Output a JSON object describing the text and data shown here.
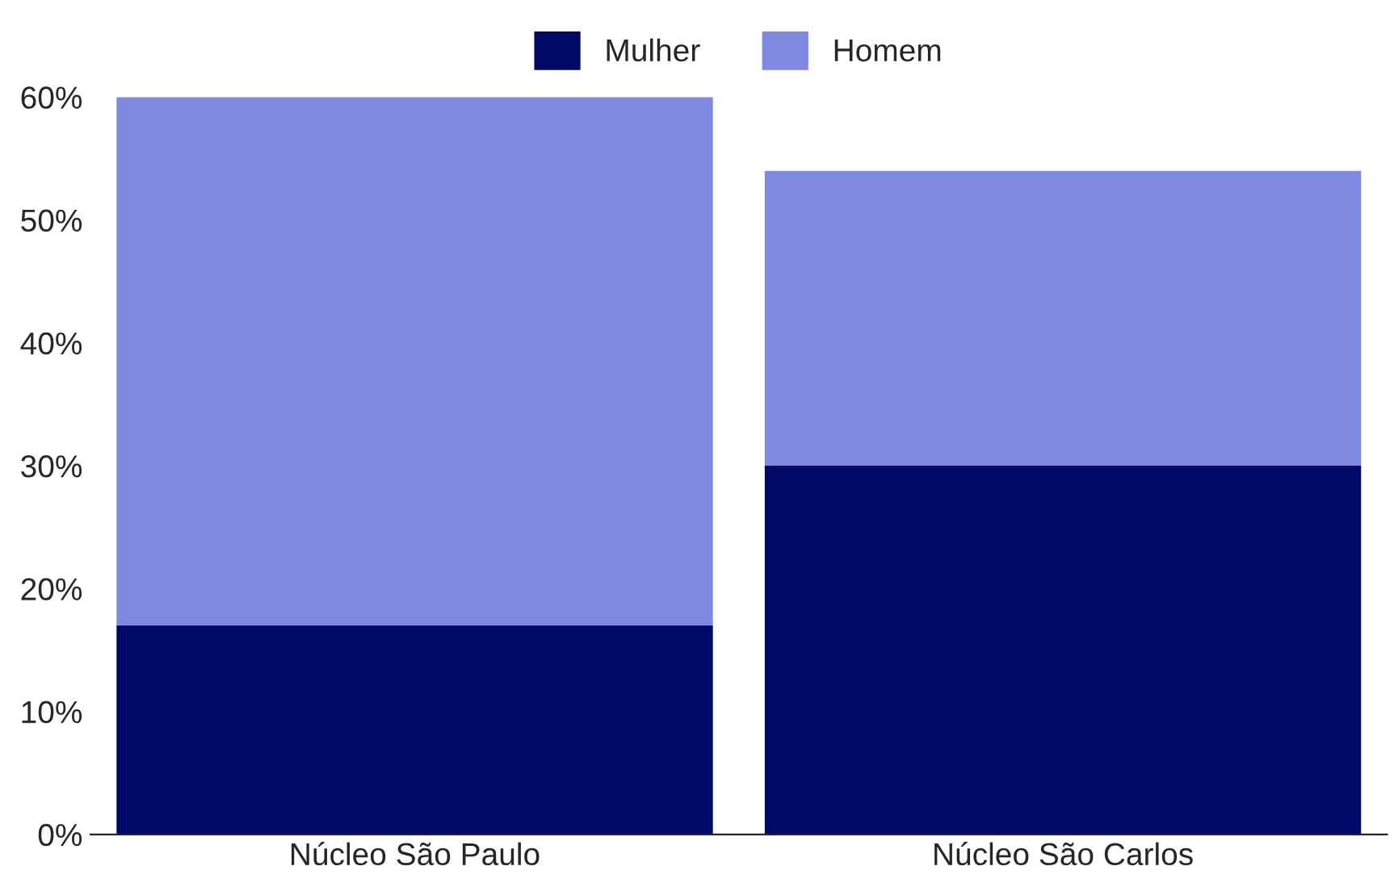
{
  "chart_data": {
    "type": "bar",
    "stacked": true,
    "categories": [
      "Núcleo São Paulo",
      "Núcleo São Carlos"
    ],
    "series": [
      {
        "name": "Mulher",
        "color": "#000a66",
        "values": [
          17,
          30
        ]
      },
      {
        "name": "Homem",
        "color": "#7f89e0",
        "values": [
          43,
          24
        ]
      }
    ],
    "ylim": [
      0,
      60
    ],
    "yticks": [
      {
        "value": 0,
        "label": "0%"
      },
      {
        "value": 10,
        "label": "10%"
      },
      {
        "value": 20,
        "label": "20%"
      },
      {
        "value": 30,
        "label": "30%"
      },
      {
        "value": 40,
        "label": "40%"
      },
      {
        "value": 50,
        "label": "50%"
      },
      {
        "value": 60,
        "label": "60%"
      }
    ],
    "grid": false,
    "legend": "top"
  }
}
